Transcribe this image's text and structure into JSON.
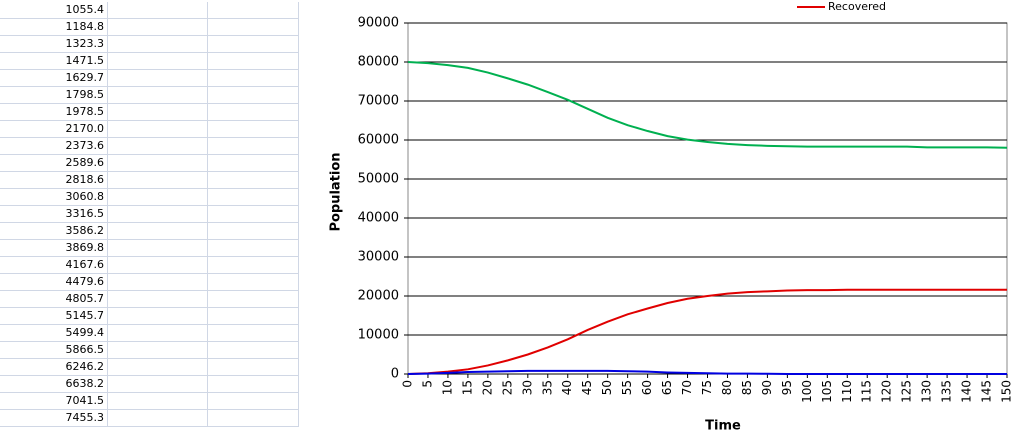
{
  "sheet": {
    "column_a": [
      "1055.4",
      "1184.8",
      "1323.3",
      "1471.5",
      "1629.7",
      "1798.5",
      "1978.5",
      "2170.0",
      "2373.6",
      "2589.6",
      "2818.6",
      "3060.8",
      "3316.5",
      "3586.2",
      "3869.8",
      "4167.6",
      "4479.6",
      "4805.7",
      "5145.7",
      "5499.4",
      "5866.5",
      "6246.2",
      "6638.2",
      "7041.5",
      "7455.3"
    ]
  },
  "chart_data": {
    "type": "line",
    "x_label": "Time",
    "y_label": "Population",
    "x": [
      0,
      5,
      10,
      15,
      20,
      25,
      30,
      35,
      40,
      45,
      50,
      55,
      60,
      65,
      70,
      75,
      80,
      85,
      90,
      95,
      100,
      105,
      110,
      115,
      120,
      125,
      130,
      135,
      140,
      145,
      150
    ],
    "series": [
      {
        "color": "#00b050",
        "values": [
          80000,
          79700,
          79200,
          78500,
          77300,
          75800,
          74200,
          72300,
          70300,
          68000,
          65700,
          63800,
          62300,
          61000,
          60100,
          59500,
          59000,
          58700,
          58500,
          58400,
          58300,
          58300,
          58300,
          58300,
          58300,
          58300,
          58100,
          58100,
          58100,
          58100,
          58000
        ]
      },
      {
        "name": "Recovered",
        "color": "#e00000",
        "values": [
          0,
          200,
          600,
          1200,
          2200,
          3500,
          5000,
          6800,
          8900,
          11300,
          13400,
          15300,
          16800,
          18200,
          19300,
          20000,
          20600,
          21000,
          21200,
          21400,
          21500,
          21500,
          21600,
          21600,
          21600,
          21600,
          21600,
          21600,
          21600,
          21600,
          21600
        ]
      },
      {
        "color": "#0000e0",
        "values": [
          0,
          100,
          300,
          500,
          600,
          700,
          800,
          800,
          800,
          800,
          800,
          700,
          600,
          400,
          300,
          200,
          100,
          100,
          50,
          0,
          0,
          0,
          0,
          0,
          0,
          0,
          0,
          0,
          0,
          0,
          0
        ]
      }
    ],
    "xlim": [
      0,
      150
    ],
    "xticks": [
      0,
      5,
      10,
      15,
      20,
      25,
      30,
      35,
      40,
      45,
      50,
      55,
      60,
      65,
      70,
      75,
      80,
      85,
      90,
      95,
      100,
      105,
      110,
      115,
      120,
      125,
      130,
      135,
      140,
      145,
      150
    ],
    "ylim": [
      0,
      90000
    ],
    "yticks": [
      0,
      10000,
      20000,
      30000,
      40000,
      50000,
      60000,
      70000,
      80000,
      90000
    ],
    "grid": true
  }
}
